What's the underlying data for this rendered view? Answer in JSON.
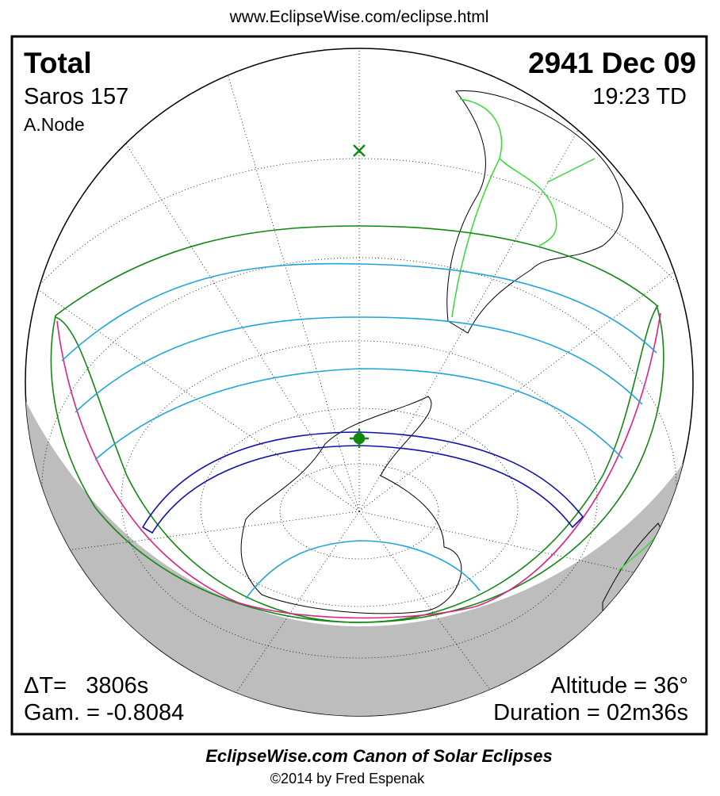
{
  "header": {
    "url": "www.EclipseWise.com/eclipse.html"
  },
  "eclipse": {
    "type": "Total",
    "date": "2941 Dec 09",
    "saros": "Saros 157",
    "time": "19:23 TD",
    "node": "A.Node",
    "delta_t": "ΔT=   3806s",
    "gamma": "Gam. = -0.8084",
    "altitude": "Altitude = 36°",
    "duration": "Duration = 02m36s"
  },
  "footer": {
    "title": "EclipseWise.com Canon of Solar Eclipses",
    "copyright": "©2014 by Fred Espenak"
  }
}
